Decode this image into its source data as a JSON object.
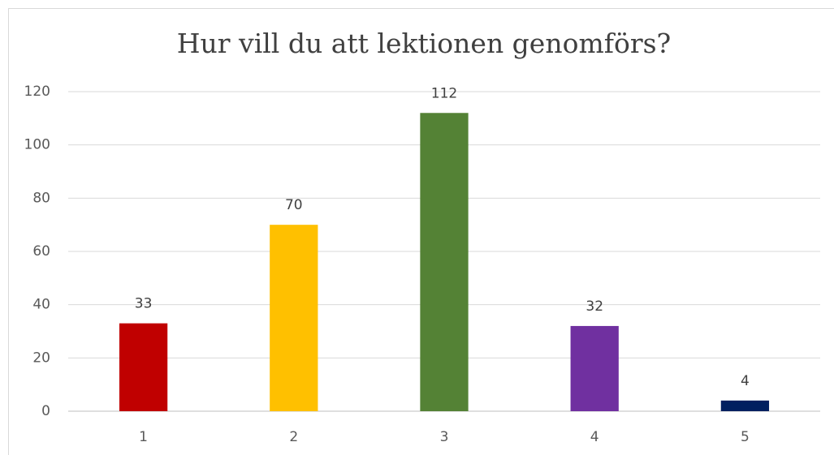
{
  "chart_data": {
    "type": "bar",
    "title": "Hur vill du att lektionen genomförs?",
    "categories": [
      "1",
      "2",
      "3",
      "4",
      "5"
    ],
    "values": [
      33,
      70,
      112,
      32,
      4
    ],
    "colors": [
      "#c00000",
      "#ffc000",
      "#548235",
      "#7030a0",
      "#002060"
    ],
    "ylim": [
      0,
      120
    ],
    "yticks": [
      0,
      20,
      40,
      60,
      80,
      100,
      120
    ],
    "grid": true
  }
}
